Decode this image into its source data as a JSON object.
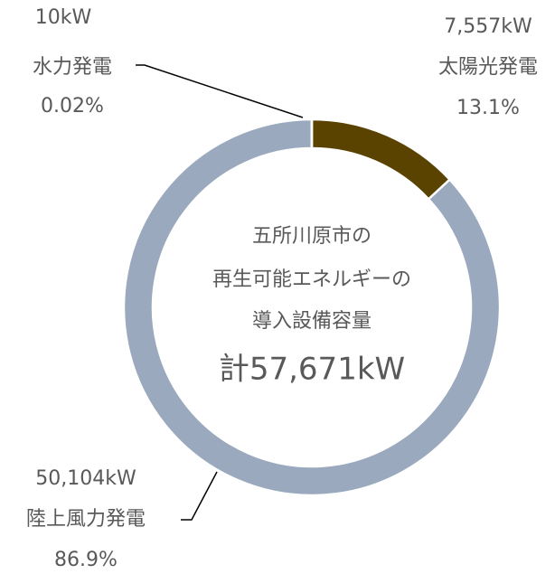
{
  "chart_data": {
    "type": "donut",
    "categories": [
      "太陽光発電",
      "陸上風力発電",
      "水力発電"
    ],
    "values": [
      7557,
      50104,
      10
    ],
    "value_labels": [
      "7,557kW",
      "50,104kW",
      "10kW"
    ],
    "percents": [
      13.1,
      86.9,
      0.02
    ],
    "percent_labels": [
      "13.1%",
      "86.9%",
      "0.02%"
    ],
    "colors": [
      "#5a4300",
      "#9aa9bd",
      "#7f7f7f"
    ],
    "center_text": [
      "五所川原市の",
      "再生可能エネルギーの",
      "導入設備容量",
      "計57,671kW"
    ]
  }
}
